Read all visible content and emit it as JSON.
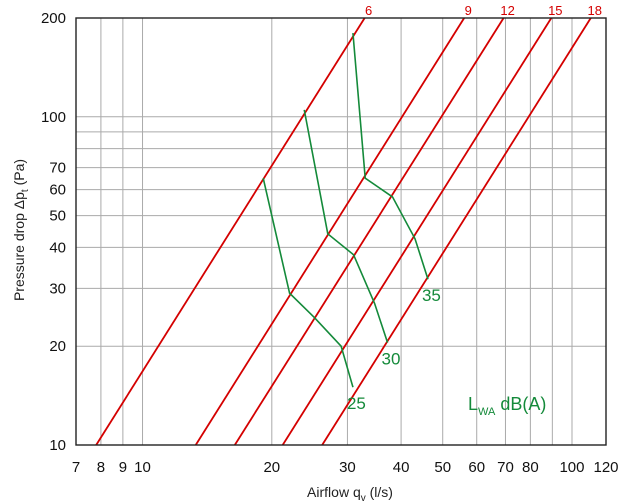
{
  "chart_data": {
    "type": "line",
    "x_scale": "log",
    "y_scale": "log",
    "xlim": [
      7,
      120
    ],
    "ylim": [
      10,
      200
    ],
    "xlabel_main": "Airflow q",
    "xlabel_sub": "v",
    "xlabel_unit": " (l/s)",
    "ylabel_main": "Pressure drop Δp",
    "ylabel_sub": "t",
    "ylabel_unit": " (Pa)",
    "x_ticks": [
      7,
      8,
      9,
      10,
      20,
      30,
      40,
      50,
      60,
      70,
      80,
      100,
      120
    ],
    "x_tick_labels": [
      "7",
      "8",
      "9",
      "10",
      "20",
      "30",
      "40",
      "50",
      "60",
      "70",
      "80",
      "100",
      "120"
    ],
    "y_ticks": [
      10,
      20,
      30,
      40,
      50,
      60,
      70,
      100,
      200
    ],
    "y_tick_labels": [
      "10",
      "20",
      "30",
      "40",
      "50",
      "60",
      "70",
      "100",
      "200"
    ],
    "x_gridlines": [
      7,
      8,
      9,
      10,
      20,
      30,
      40,
      50,
      60,
      70,
      80,
      90,
      100,
      120
    ],
    "y_gridlines": [
      10,
      20,
      30,
      40,
      50,
      60,
      70,
      80,
      90,
      100,
      200
    ],
    "red_lines": [
      {
        "label": "6",
        "points": [
          [
            7.8,
            10
          ],
          [
            32.9,
            200
          ]
        ]
      },
      {
        "label": "9",
        "points": [
          [
            13.3,
            10
          ],
          [
            56.1,
            200
          ]
        ]
      },
      {
        "label": "12",
        "points": [
          [
            16.4,
            10
          ],
          [
            69.3,
            200
          ]
        ]
      },
      {
        "label": "15",
        "points": [
          [
            21.2,
            10
          ],
          [
            89.5,
            200
          ]
        ]
      },
      {
        "label": "18",
        "points": [
          [
            26.2,
            10
          ],
          [
            110.6,
            200
          ]
        ]
      }
    ],
    "green_lines": [
      {
        "label": "25",
        "points": [
          [
            19.1,
            65
          ],
          [
            22.0,
            29
          ],
          [
            25.1,
            24.5
          ],
          [
            29.0,
            20
          ],
          [
            30.9,
            15
          ]
        ]
      },
      {
        "label": "30",
        "points": [
          [
            23.8,
            105
          ],
          [
            27.0,
            44
          ],
          [
            31.0,
            38
          ],
          [
            34.7,
            27
          ],
          [
            37.2,
            20.5
          ]
        ]
      },
      {
        "label": "35",
        "points": [
          [
            30.9,
            180
          ],
          [
            33.0,
            65
          ],
          [
            38.2,
            57
          ],
          [
            43.1,
            42.5
          ],
          [
            46.2,
            32
          ]
        ]
      }
    ],
    "legend_text": "L",
    "legend_sub": "WA",
    "legend_unit": " dB(A)",
    "colors": {
      "grid": "#aaaaaa",
      "red": "#d40000",
      "green": "#148a3a",
      "axis": "#222222"
    }
  }
}
